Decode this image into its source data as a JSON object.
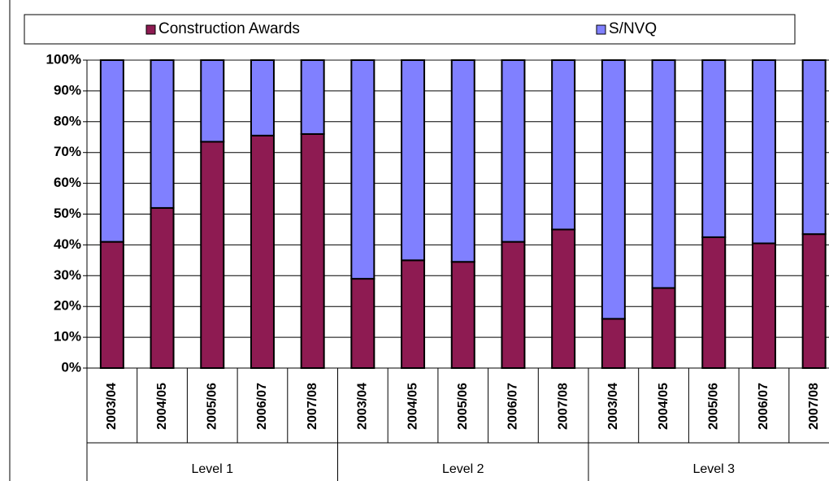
{
  "chart_data": {
    "type": "stacked-bar-100",
    "groups": [
      {
        "name": "Level 1",
        "categories": [
          "2003/04",
          "2004/05",
          "2005/06",
          "2006/07",
          "2007/08"
        ]
      },
      {
        "name": "Level 2",
        "categories": [
          "2003/04",
          "2004/05",
          "2005/06",
          "2006/07",
          "2007/08"
        ]
      },
      {
        "name": "Level 3",
        "categories": [
          "2003/04",
          "2004/05",
          "2005/06",
          "2006/07",
          "2007/08"
        ]
      }
    ],
    "series": [
      {
        "name": "Construction Awards",
        "color": "#8e1b52",
        "values": [
          41,
          52,
          73.5,
          75.5,
          76,
          29,
          35,
          34.5,
          41,
          45,
          16,
          26,
          42.5,
          40.5,
          43.5
        ]
      },
      {
        "name": "S/NVQ",
        "color": "#8080ff",
        "values": [
          59,
          48,
          26.5,
          24.5,
          24,
          71,
          65,
          65.5,
          59,
          55,
          84,
          74,
          57.5,
          59.5,
          56.5
        ]
      }
    ],
    "ylim": [
      0,
      100
    ],
    "yticks": [
      {
        "value": 0,
        "label": "0%"
      },
      {
        "value": 10,
        "label": "10%"
      },
      {
        "value": 20,
        "label": "20%"
      },
      {
        "value": 30,
        "label": "30%"
      },
      {
        "value": 40,
        "label": "40%"
      },
      {
        "value": 50,
        "label": "50%"
      },
      {
        "value": 60,
        "label": "60%"
      },
      {
        "value": 70,
        "label": "70%"
      },
      {
        "value": 80,
        "label": "80%"
      },
      {
        "value": 90,
        "label": "90%"
      },
      {
        "value": 100,
        "label": "100%"
      }
    ],
    "grid": true,
    "legend": "top"
  }
}
